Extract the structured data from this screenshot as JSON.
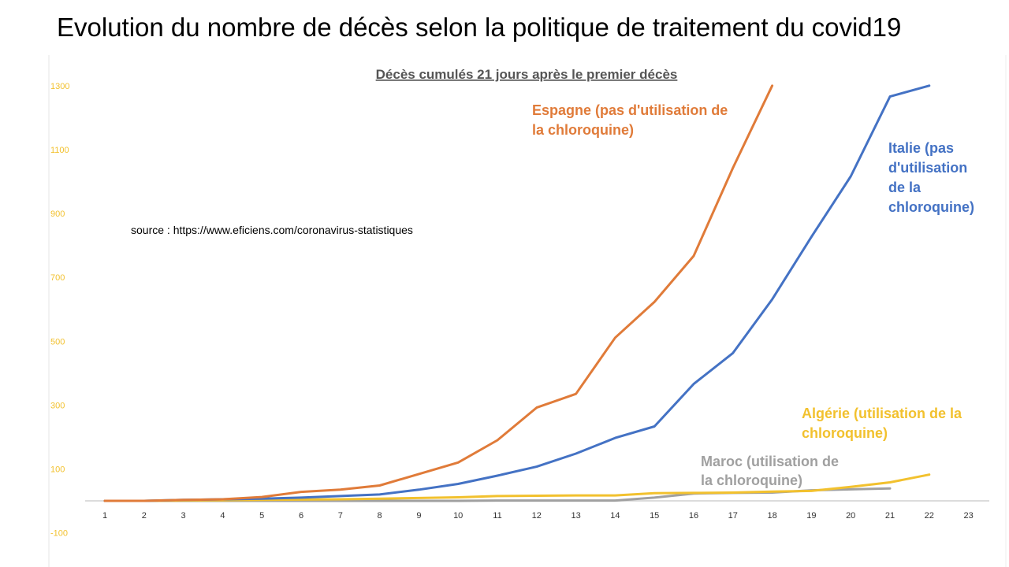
{
  "slide_title": "Evolution du nombre de décès selon la politique de traitement du covid19",
  "source_note": "source : https://www.eficiens.com/coronavirus-statistiques",
  "colors": {
    "espagne": "#E07B39",
    "italie": "#4472C4",
    "algerie": "#F2C12E",
    "maroc": "#A0A0A0",
    "ytick": "#F2C12E",
    "axis": "#D0D0D0"
  },
  "chart_data": {
    "type": "line",
    "title": "Décès cumulés 21 jours après le premier décès",
    "xlabel": "",
    "ylabel": "",
    "x": [
      1,
      2,
      3,
      4,
      5,
      6,
      7,
      8,
      9,
      10,
      11,
      12,
      13,
      14,
      15,
      16,
      17,
      18,
      19,
      20,
      21,
      22,
      23
    ],
    "x_ticks": [
      "1",
      "2",
      "3",
      "4",
      "5",
      "6",
      "7",
      "8",
      "9",
      "10",
      "11",
      "12",
      "13",
      "14",
      "15",
      "16",
      "17",
      "18",
      "19",
      "20",
      "21",
      "22",
      "23"
    ],
    "y_ticks": [
      "-100",
      "100",
      "300",
      "500",
      "700",
      "900",
      "1100",
      "1300"
    ],
    "ylim": [
      -100,
      1300
    ],
    "grid": false,
    "series": [
      {
        "key": "espagne",
        "name": "Espagne (pas d'utilisation de la chloroquine)",
        "x": [
          1,
          2,
          3,
          4,
          5,
          6,
          7,
          8,
          9,
          10,
          11,
          12,
          13,
          14,
          15,
          16,
          17,
          18
        ],
        "values": [
          0,
          0,
          3,
          5,
          12,
          28,
          35,
          48,
          84,
          120,
          190,
          292,
          335,
          511,
          623,
          767,
          1043,
          1300
        ]
      },
      {
        "key": "italie",
        "name": "Italie (pas d'utilisation de la chloroquine)",
        "x": [
          1,
          2,
          3,
          4,
          5,
          6,
          7,
          8,
          9,
          10,
          11,
          12,
          13,
          14,
          15,
          16,
          17,
          18,
          19,
          20,
          21,
          22
        ],
        "values": [
          0,
          0,
          3,
          5,
          7,
          10,
          15,
          20,
          35,
          53,
          79,
          107,
          148,
          197,
          233,
          366,
          463,
          631,
          827,
          1016,
          1266,
          1300
        ]
      },
      {
        "key": "algerie",
        "name": "Algérie (utilisation de la chloroquine)",
        "x": [
          1,
          2,
          3,
          4,
          5,
          6,
          7,
          8,
          9,
          10,
          11,
          12,
          13,
          14,
          15,
          16,
          17,
          18,
          19,
          20,
          21,
          22
        ],
        "values": [
          0,
          0,
          1,
          2,
          3,
          4,
          5,
          7,
          9,
          11,
          15,
          16,
          17,
          17,
          24,
          25,
          26,
          29,
          31,
          44,
          58,
          82
        ]
      },
      {
        "key": "maroc",
        "name": "Maroc (utilisation de la chloroquine)",
        "x": [
          1,
          2,
          3,
          4,
          5,
          6,
          7,
          8,
          9,
          10,
          11,
          12,
          13,
          14,
          15,
          16,
          17,
          18,
          19,
          20,
          21
        ],
        "values": [
          0,
          0,
          0,
          0,
          0,
          0,
          0,
          0,
          0,
          0,
          1,
          1,
          1,
          1,
          10,
          23,
          25,
          26,
          33,
          36,
          39
        ]
      }
    ],
    "annotations": [
      {
        "key": "espagne",
        "lines": [
          "Espagne (pas d'utilisation de",
          "la chloroquine)"
        ]
      },
      {
        "key": "italie",
        "lines": [
          "Italie (pas",
          "d'utilisation",
          "de la",
          "chloroquine)"
        ]
      },
      {
        "key": "algerie",
        "lines": [
          "Algérie (utilisation de la",
          "chloroquine)"
        ]
      },
      {
        "key": "maroc",
        "lines": [
          "Maroc (utilisation de",
          "la chloroquine)"
        ]
      }
    ]
  }
}
